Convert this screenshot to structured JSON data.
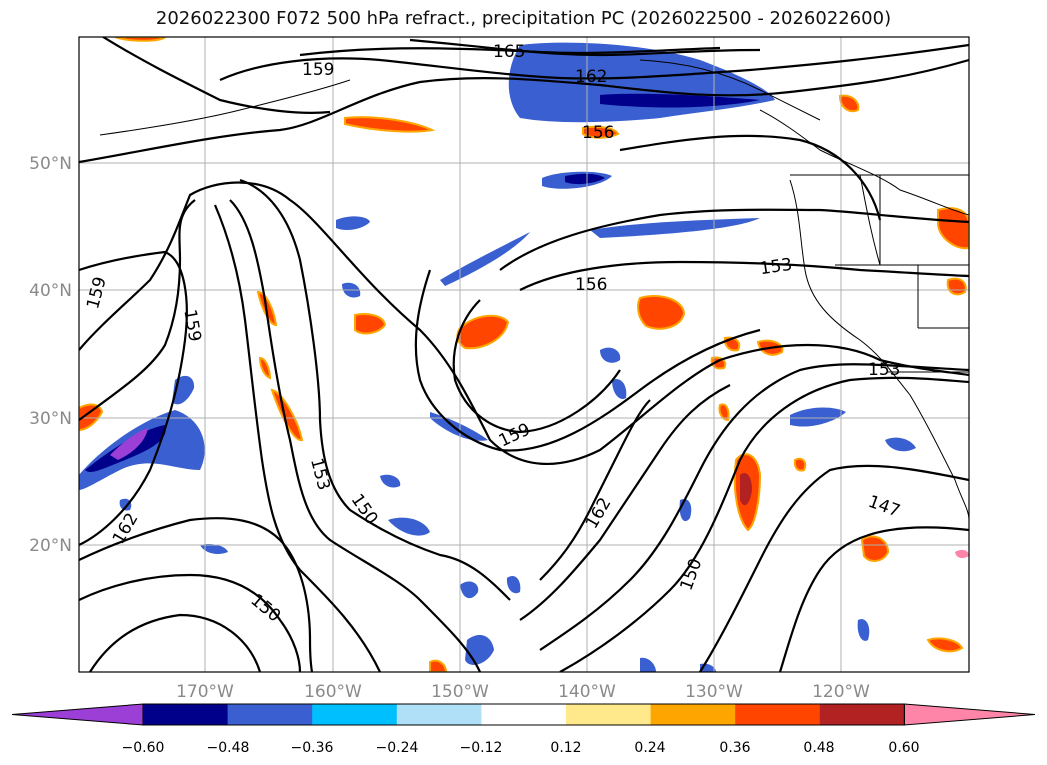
{
  "title": "2026022300 F072 500 hPa refract., precipitation PC (2026022500 - 2026022600)",
  "lat_labels": [
    "50°N",
    "40°N",
    "30°N",
    "20°N"
  ],
  "lon_labels": [
    "170°W",
    "160°W",
    "150°W",
    "140°W",
    "130°W",
    "120°W"
  ],
  "contour_labels": [
    "165",
    "162",
    "159",
    "156",
    "159",
    "159",
    "153",
    "150",
    "162",
    "150",
    "159",
    "150",
    "156",
    "153",
    "153",
    "147",
    "162"
  ],
  "colorbar": {
    "ticks": [
      "−0.60",
      "−0.48",
      "−0.36",
      "−0.24",
      "−0.12",
      "0.12",
      "0.24",
      "0.36",
      "0.48",
      "0.60"
    ],
    "colors": [
      "#9b3fd6",
      "#00008b",
      "#3a5fd0",
      "#00bfff",
      "#b0e0f8",
      "#ffffff",
      "#ffe98a",
      "#ffa500",
      "#ff4500",
      "#b22222",
      "#ff85a8"
    ]
  }
}
